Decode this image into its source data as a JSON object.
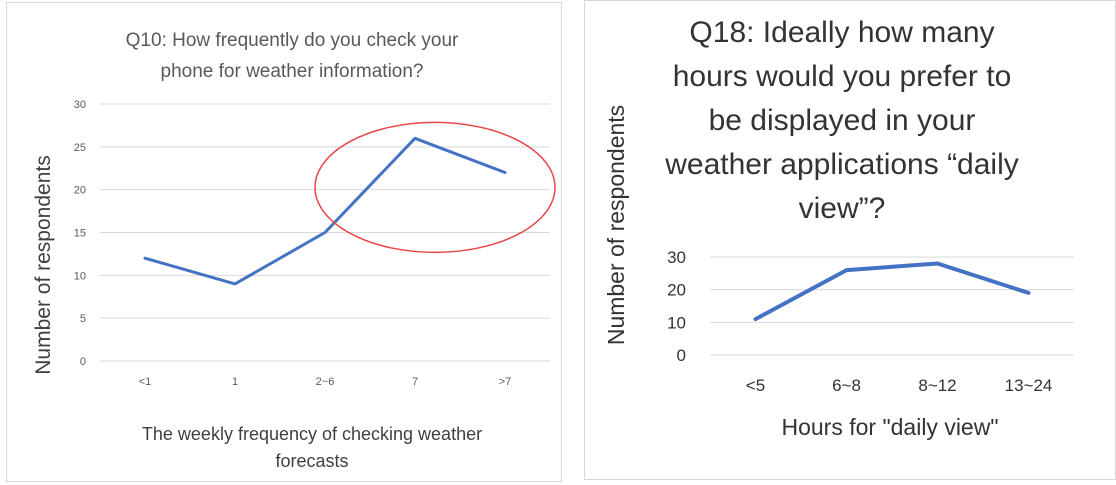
{
  "chart_data": [
    {
      "type": "line",
      "title_lines": [
        "Q10: How frequently do you check your",
        "phone for weather information?"
      ],
      "xlabel_lines": [
        "The weekly frequency of checking weather",
        "forecasts"
      ],
      "ylabel": "Number of respondents",
      "categories": [
        "<1",
        "1",
        "2~6",
        "7",
        ">7"
      ],
      "values": [
        12,
        9,
        15,
        26,
        22
      ],
      "ylim": [
        0,
        30
      ],
      "yticks": [
        0,
        5,
        10,
        15,
        20,
        25,
        30
      ],
      "grid": true,
      "line_color": "#4472c4",
      "annotation": {
        "shape": "ellipse",
        "color": "#e8464a",
        "around_categories": [
          "2~6",
          "7",
          ">7"
        ]
      }
    },
    {
      "type": "line",
      "title_lines": [
        "Q18: Ideally how many",
        "hours would you prefer to",
        "be displayed in your",
        "weather applications “daily",
        "view”?"
      ],
      "xlabel": "Hours for \"daily view\"",
      "ylabel": "Number of respondents",
      "categories": [
        "<5",
        "6~8",
        "8~12",
        "13~24"
      ],
      "values": [
        11,
        26,
        28,
        19
      ],
      "ylim": [
        0,
        30
      ],
      "yticks": [
        0,
        10,
        20,
        30
      ],
      "grid": true,
      "line_color": "#4472c4"
    }
  ]
}
